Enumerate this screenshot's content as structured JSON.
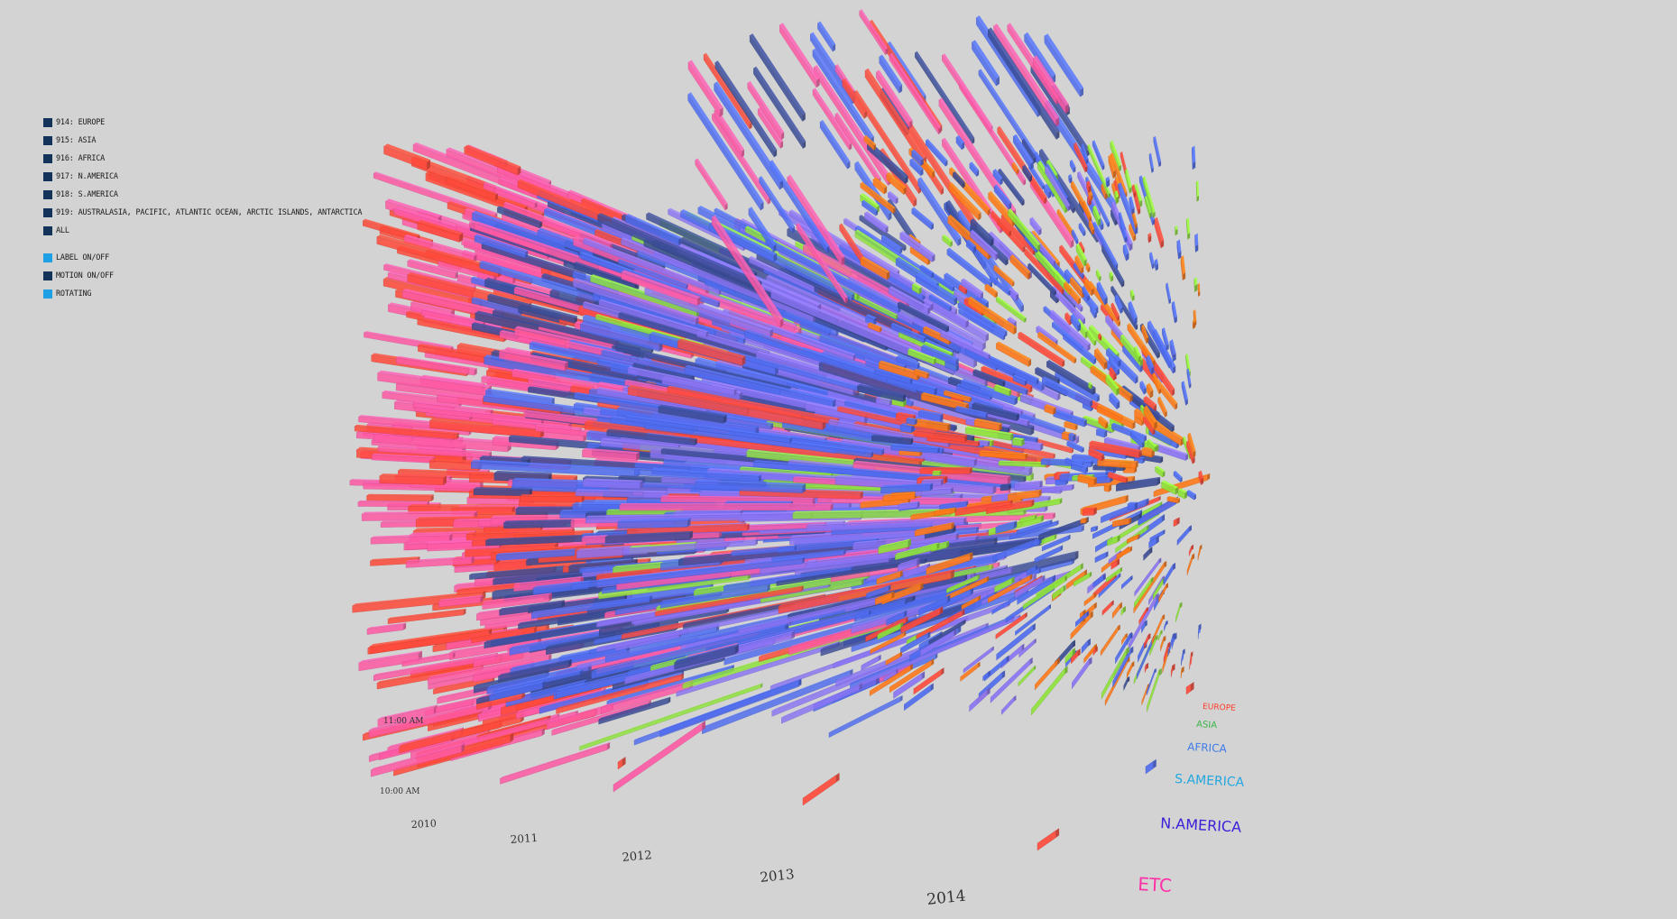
{
  "controls": [
    {
      "label": "914: EUROPE",
      "color": "#14335a"
    },
    {
      "label": "915: ASIA",
      "color": "#14335a"
    },
    {
      "label": "916: AFRICA",
      "color": "#14335a"
    },
    {
      "label": "917: N.AMERICA",
      "color": "#14335a"
    },
    {
      "label": "918: S.AMERICA",
      "color": "#14335a"
    },
    {
      "label": "919: AUSTRALASIA, PACIFIC, ATLANTIC OCEAN, ARCTIC ISLANDS, ANTARCTICA",
      "color": "#14335a"
    },
    {
      "label": "ALL",
      "color": "#14335a"
    }
  ],
  "toggles": [
    {
      "label": "LABEL ON/OFF",
      "color": "#1ea0e6"
    },
    {
      "label": "MOTION ON/OFF",
      "color": "#14335a"
    },
    {
      "label": "ROTATING",
      "color": "#1ea0e6"
    }
  ],
  "chart_data": {
    "type": "3d-bar",
    "x_ticks": [
      "2010",
      "2011",
      "2012",
      "2013",
      "2014"
    ],
    "y_ticks": [
      "10:00 AM",
      "11:00 AM"
    ],
    "legend": [
      {
        "name": "EUROPE",
        "color": "#ff3b2a"
      },
      {
        "name": "ASIA",
        "color": "#39b54a"
      },
      {
        "name": "AFRICA",
        "color": "#3f7be8"
      },
      {
        "name": "S.AMERICA",
        "color": "#22a7e0"
      },
      {
        "name": "N.AMERICA",
        "color": "#3b20d9"
      },
      {
        "name": "ETC",
        "color": "#ff2fa6"
      }
    ],
    "bar_colors": {
      "pink": "#ff5aa5",
      "red": "#ff4a3a",
      "blue": "#4f6cf0",
      "violet": "#8a74f5",
      "navy": "#3b4c95",
      "green": "#8ee33a",
      "orange": "#ff7a1a",
      "cyan": "#25b8e8"
    }
  }
}
